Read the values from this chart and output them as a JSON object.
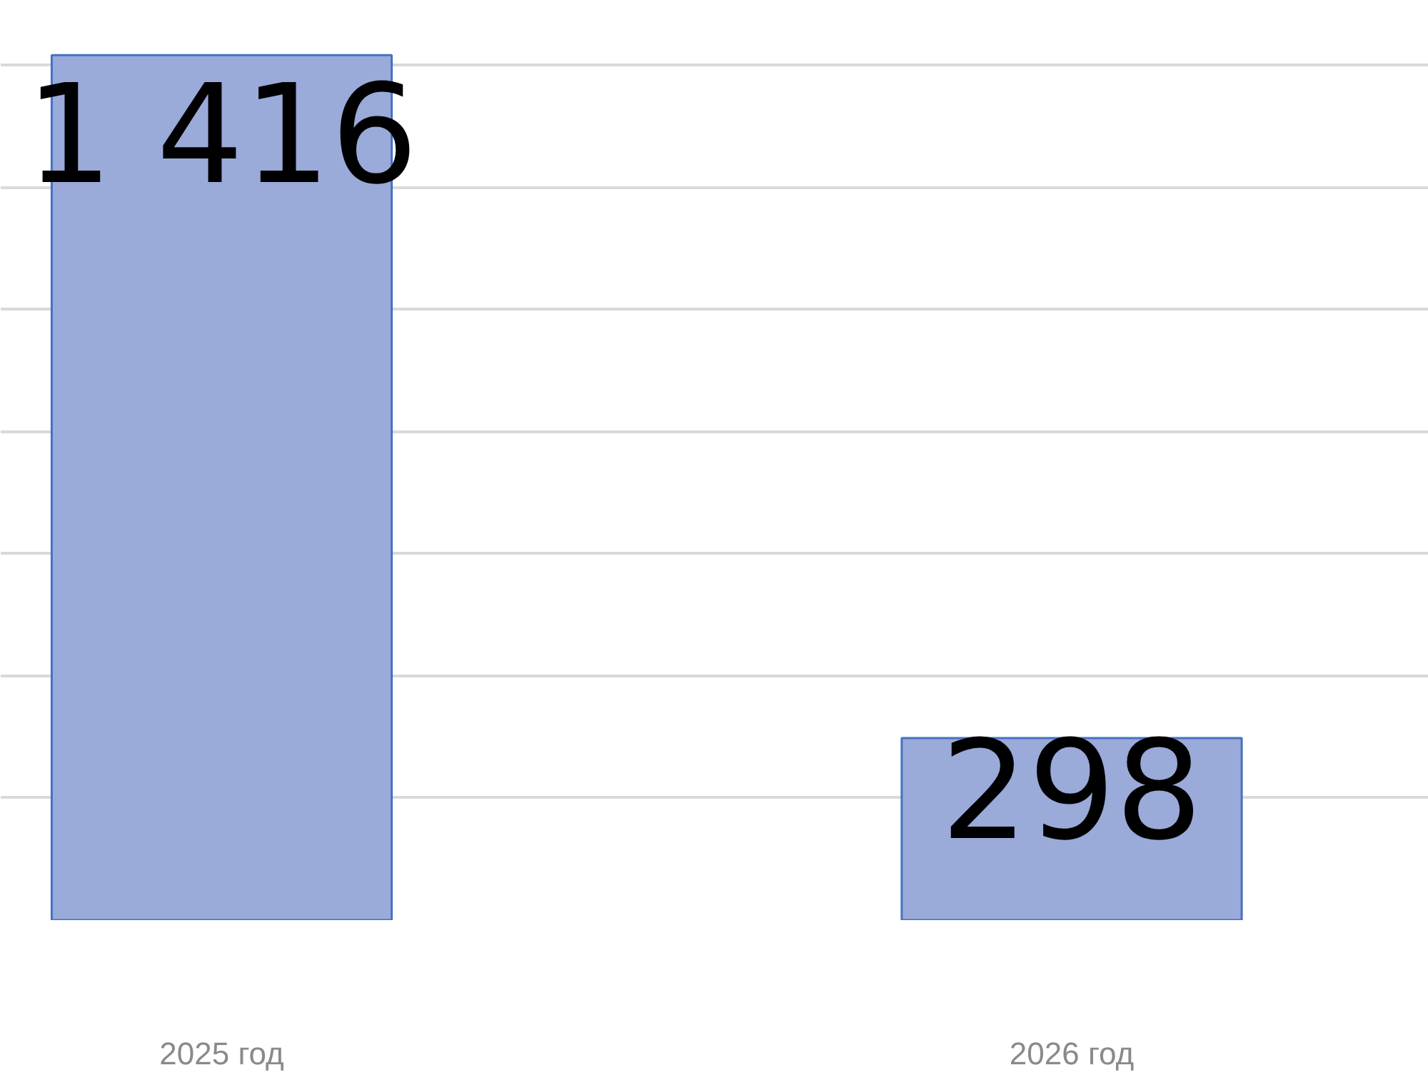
{
  "chart_data": {
    "type": "bar",
    "categories": [
      "2025 год",
      "2026 год"
    ],
    "values": [
      1416,
      298
    ],
    "value_labels": [
      "1 416",
      "298"
    ],
    "color": "#9aaad9",
    "yticks": [
      {
        "value": 200,
        "label": null
      },
      {
        "value": 400,
        "label": null
      },
      {
        "value": 600,
        "label": null
      },
      {
        "value": 800,
        "label": null
      },
      {
        "value": 1000,
        "label": null
      },
      {
        "value": 1200,
        "label": null
      },
      {
        "value": 1400,
        "label": null
      }
    ],
    "grid": "y",
    "tick_labels": "x"
  }
}
